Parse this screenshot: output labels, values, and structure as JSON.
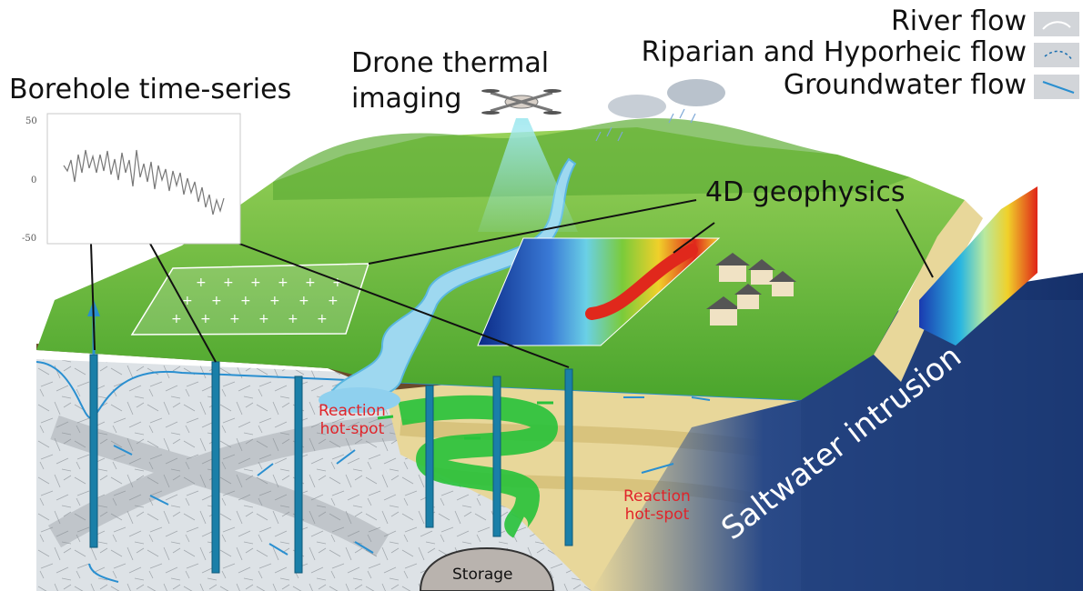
{
  "labels": {
    "borehole": "Borehole time-series",
    "drone_line1": "Drone thermal",
    "drone_line2": "imaging",
    "geophysics": "4D geophysics",
    "reaction1_line1": "Reaction",
    "reaction1_line2": "hot-spot",
    "reaction2_line1": "Reaction",
    "reaction2_line2": "hot-spot",
    "saltwater": "Saltwater intrusion",
    "storage": "Storage"
  },
  "legend": {
    "river": "River flow",
    "riparian": "Riparian and Hyporheic flow",
    "groundwater": "Groundwater flow"
  },
  "timeseries": {
    "ticks": [
      "50",
      "0",
      "-50"
    ],
    "ylim": [
      -55,
      55
    ]
  },
  "colors": {
    "grass": "#6cbf3c",
    "rock": "#d9dee2",
    "water": "#8ed3ee",
    "well": "#1a7fa8",
    "reaction_text": "#e0242a",
    "seawater": "#1d3a78"
  }
}
